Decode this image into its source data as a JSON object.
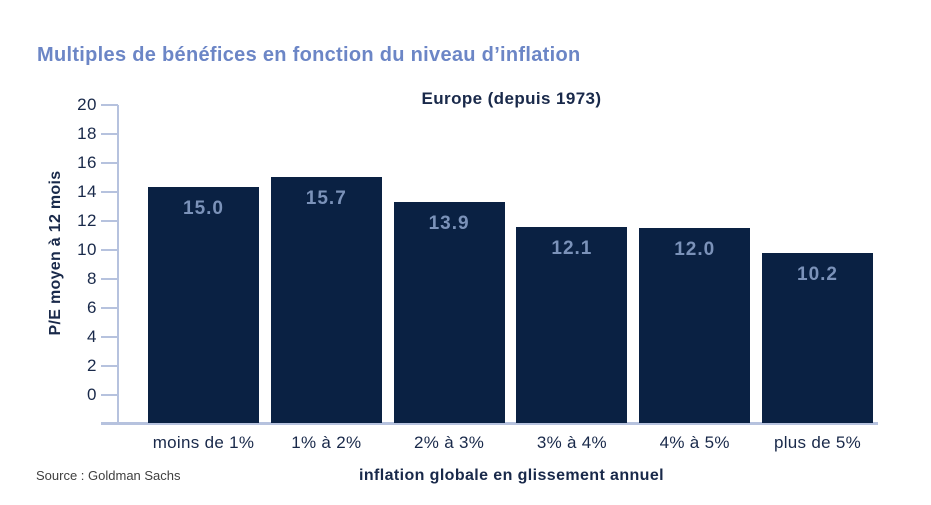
{
  "page": {
    "title": "Multiples de bénéfices en fonction du niveau d’inflation",
    "source": "Source : Goldman Sachs"
  },
  "chart_data": {
    "type": "bar",
    "title": "Europe (depuis 1973)",
    "categories": [
      "moins de 1%",
      "1% à 2%",
      "2% à 3%",
      "3% à 4%",
      "4% à 5%",
      "plus de 5%"
    ],
    "values": [
      15.0,
      15.7,
      13.9,
      12.1,
      12.0,
      10.2
    ],
    "value_labels": [
      "15.0",
      "15.7",
      "13.9",
      "12.1",
      "12.0",
      "10.2"
    ],
    "xlabel": "inflation globale en glissement annuel",
    "ylabel": "P/E moyen à 12 mois",
    "ylim": [
      0,
      20
    ],
    "yticks": [
      0,
      2,
      4,
      6,
      8,
      10,
      12,
      14,
      16,
      18,
      20
    ],
    "grid": false,
    "legend": null,
    "value_label_position": "inside-top",
    "colors": {
      "bar": "#0a2143",
      "page_title": "#6c86c6",
      "value_label": "#7b92b9",
      "axis": "#b6c2de",
      "text": "#19294a",
      "source_text": "#3f3f3f"
    }
  }
}
